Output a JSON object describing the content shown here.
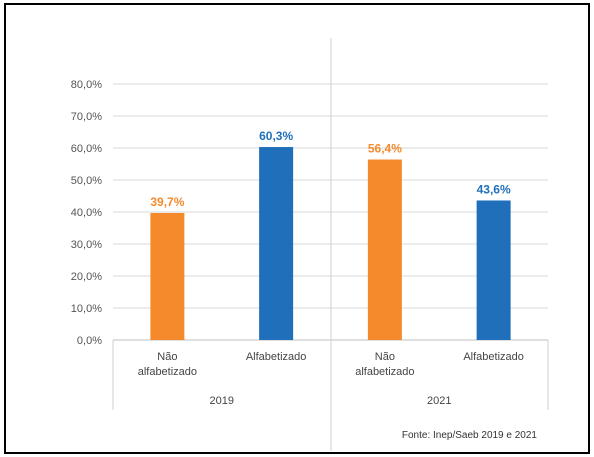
{
  "chart_data": {
    "type": "bar",
    "groups": [
      {
        "name": "2019",
        "categories": [
          "Não alfabetizado",
          "Alfabetizado"
        ],
        "values": [
          39.7,
          60.3
        ],
        "labels": [
          "39,7%",
          "60,3%"
        ]
      },
      {
        "name": "2021",
        "categories": [
          "Não alfabetizado",
          "Alfabetizado"
        ],
        "values": [
          56.4,
          43.6
        ],
        "labels": [
          "56,4%",
          "43,6%"
        ]
      }
    ],
    "category_lines": [
      [
        "Não",
        "alfabetizado"
      ],
      [
        "Alfabetizado"
      ]
    ],
    "yticks": [
      "0,0%",
      "10,0%",
      "20,0%",
      "30,0%",
      "40,0%",
      "50,0%",
      "60,0%",
      "70,0%",
      "80,0%"
    ],
    "ylim": [
      0,
      80
    ],
    "grid": true,
    "colors": {
      "Não alfabetizado": "#F58A2C",
      "Alfabetizado": "#1F6FBA",
      "grid": "#d9d9d9"
    },
    "source": "Fonte: Inep/Saeb 2019 e 2021"
  }
}
